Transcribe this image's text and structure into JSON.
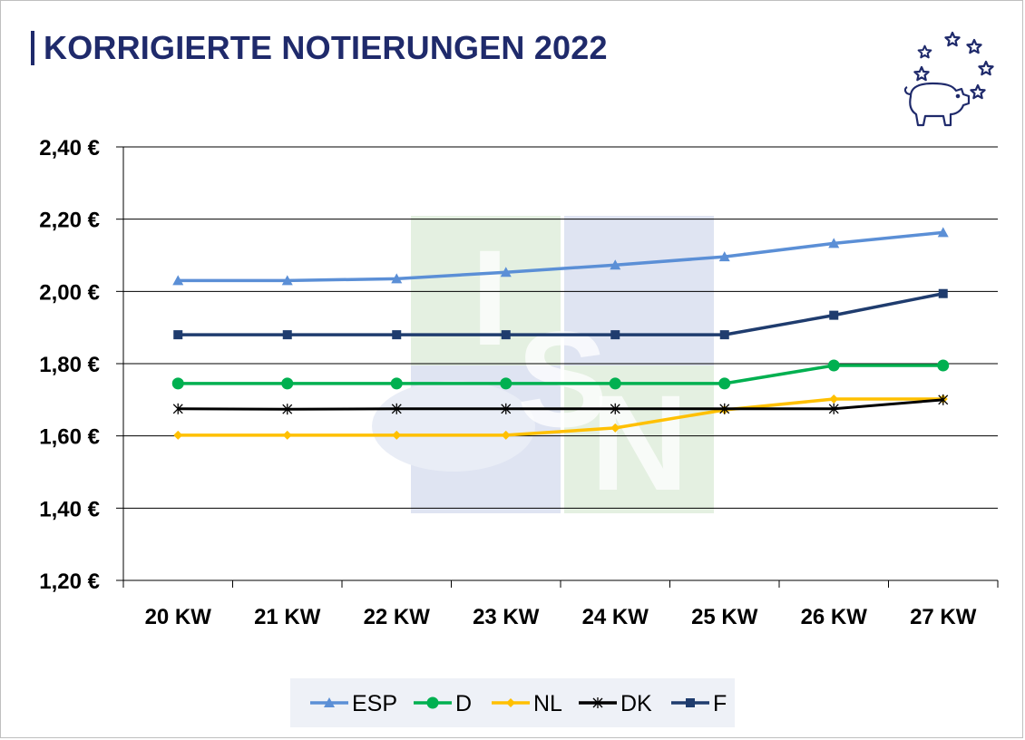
{
  "header": {
    "title": "KORRIGIERTE NOTIERUNGEN 2022"
  },
  "logo": {
    "icon": "pig-with-stars-icon",
    "color": "#1f2a6b"
  },
  "watermark": {
    "letters": [
      "I",
      "S",
      "N"
    ]
  },
  "chart_data": {
    "type": "line",
    "title": "KORRIGIERTE NOTIERUNGEN 2022",
    "xlabel": "",
    "ylabel": "",
    "categories": [
      "20 KW",
      "21 KW",
      "22 KW",
      "23 KW",
      "24 KW",
      "25 KW",
      "26 KW",
      "27 KW"
    ],
    "ylim": [
      1.2,
      2.4
    ],
    "yticks": [
      1.2,
      1.4,
      1.6,
      1.8,
      2.0,
      2.2,
      2.4
    ],
    "ytick_labels": [
      "1,20 €",
      "1,40 €",
      "1,60 €",
      "1,80 €",
      "2,00 €",
      "2,20 €",
      "2,40 €"
    ],
    "grid": true,
    "legend_position": "bottom",
    "series": [
      {
        "name": "ESP",
        "color": "#5b8fd6",
        "marker": "triangle",
        "values": [
          2.03,
          2.03,
          2.035,
          2.053,
          2.073,
          2.096,
          2.133,
          2.163
        ]
      },
      {
        "name": "D",
        "color": "#00b050",
        "marker": "circle",
        "values": [
          1.745,
          1.745,
          1.745,
          1.745,
          1.745,
          1.745,
          1.795,
          1.795
        ]
      },
      {
        "name": "NL",
        "color": "#ffc000",
        "marker": "diamond",
        "values": [
          1.602,
          1.602,
          1.602,
          1.602,
          1.622,
          1.672,
          1.702,
          1.702
        ]
      },
      {
        "name": "DK",
        "color": "#000000",
        "marker": "star",
        "values": [
          1.675,
          1.674,
          1.675,
          1.675,
          1.675,
          1.675,
          1.675,
          1.7
        ]
      },
      {
        "name": "F",
        "color": "#1f3c6e",
        "marker": "square",
        "values": [
          1.88,
          1.88,
          1.88,
          1.88,
          1.88,
          1.88,
          1.934,
          1.994
        ]
      }
    ]
  }
}
